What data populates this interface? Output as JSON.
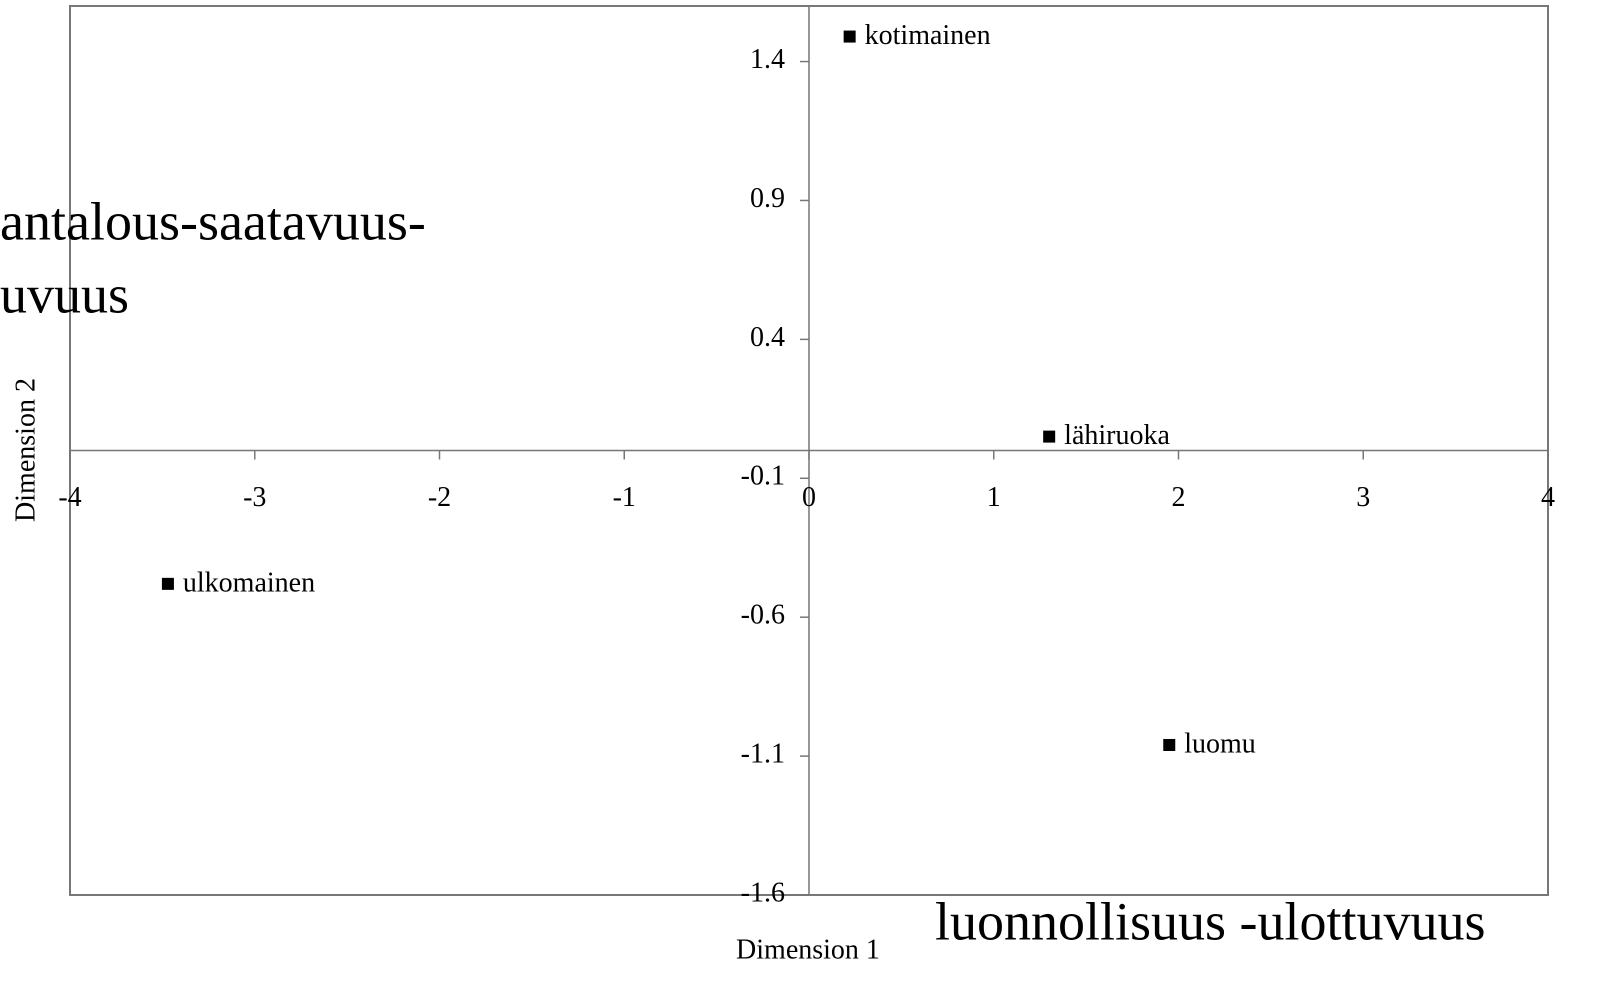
{
  "chart_data": {
    "type": "scatter",
    "xlabel": "Dimension 1",
    "ylabel": "Dimension 2",
    "annotations": [
      "antalous-saatavuus-",
      "uvuus",
      "luonnollisuus -ulottuvuus"
    ],
    "point_labels": [
      "kotimainen",
      "lähiruoka",
      "ulkomainen",
      "luomu"
    ],
    "x": [
      0.22,
      1.3,
      -3.47,
      1.95
    ],
    "values": [
      1.49,
      0.05,
      -0.48,
      -1.06
    ],
    "color": "#000000",
    "xlim": [
      -4,
      4
    ],
    "xticks": [
      -4,
      -3,
      -2,
      -1,
      0,
      1,
      2,
      3,
      4
    ],
    "ylim": [
      -1.6,
      1.6
    ],
    "yticks": [
      -1.6,
      -1.1,
      -0.6,
      -0.1,
      0.4,
      0.9,
      1.4
    ],
    "grid": false
  }
}
